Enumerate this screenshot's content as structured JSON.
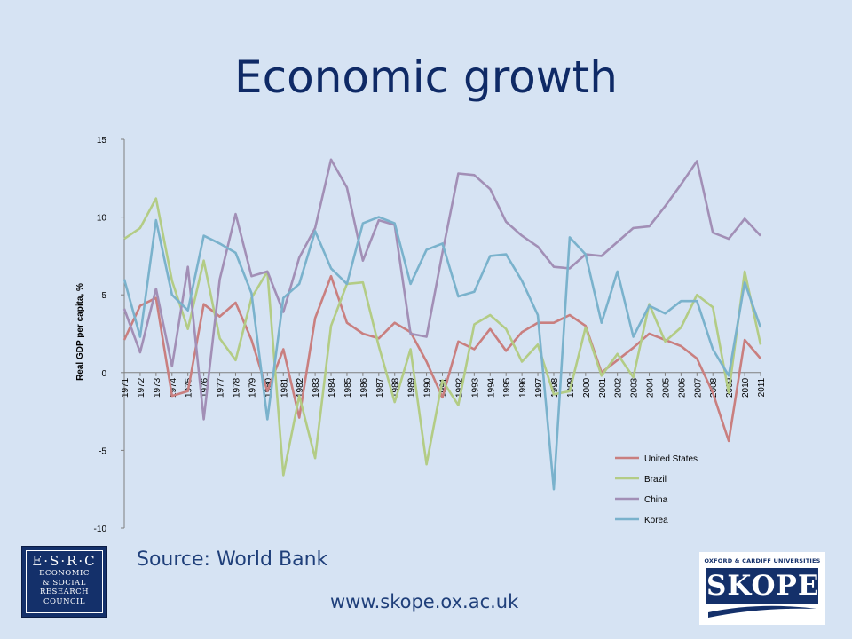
{
  "page": {
    "title": "Economic growth"
  },
  "chart_data": {
    "type": "line",
    "title": "",
    "xlabel": "",
    "ylabel": "Real GDP per capita, %",
    "ylim": [
      -10,
      15
    ],
    "yticks": [
      15,
      10,
      5,
      0,
      -5,
      -10
    ],
    "grid": false,
    "legend_position": "bottom-right",
    "x": [
      "1971",
      "1972",
      "1973",
      "1974",
      "1975",
      "1976",
      "1977",
      "1978",
      "1979",
      "1980",
      "1981",
      "1982",
      "1983",
      "1984",
      "1985",
      "1986",
      "1987",
      "1988",
      "1989",
      "1990",
      "1991",
      "1992",
      "1993",
      "1994",
      "1995",
      "1996",
      "1997",
      "1998",
      "1999",
      "2000",
      "2001",
      "2002",
      "2003",
      "2004",
      "2005",
      "2006",
      "2007",
      "2008",
      "2009",
      "2010",
      "2011"
    ],
    "series": [
      {
        "name": "United States",
        "color": "#c97f7f",
        "values": [
          2.1,
          4.3,
          4.8,
          -1.5,
          -1.2,
          4.4,
          3.6,
          4.5,
          2.1,
          -1.2,
          1.5,
          -2.9,
          3.5,
          6.2,
          3.2,
          2.5,
          2.2,
          3.2,
          2.6,
          0.7,
          -1.6,
          2.0,
          1.5,
          2.8,
          1.4,
          2.6,
          3.2,
          3.2,
          3.7,
          3.0,
          0.0,
          0.8,
          1.6,
          2.5,
          2.1,
          1.7,
          0.9,
          -1.3,
          -4.4,
          2.1,
          0.9
        ]
      },
      {
        "name": "Brazil",
        "color": "#b3cc85",
        "values": [
          8.6,
          9.3,
          11.2,
          5.9,
          2.8,
          7.2,
          2.2,
          0.8,
          4.8,
          6.5,
          -6.6,
          -1.5,
          -5.5,
          3.0,
          5.7,
          5.8,
          1.7,
          -1.9,
          1.5,
          -5.9,
          -0.5,
          -2.1,
          3.1,
          3.7,
          2.8,
          0.7,
          1.8,
          -1.4,
          -1.2,
          2.9,
          -0.2,
          1.2,
          -0.3,
          4.4,
          2.0,
          2.9,
          5.0,
          4.2,
          -1.3,
          6.5,
          1.8
        ]
      },
      {
        "name": "China",
        "color": "#a28fb6",
        "values": [
          4.1,
          1.3,
          5.4,
          0.4,
          6.8,
          -3.0,
          6.0,
          10.2,
          6.2,
          6.5,
          3.9,
          7.4,
          9.3,
          13.7,
          11.9,
          7.2,
          9.8,
          9.5,
          2.5,
          2.3,
          7.7,
          12.8,
          12.7,
          11.8,
          9.7,
          8.8,
          8.1,
          6.8,
          6.7,
          7.6,
          7.5,
          8.4,
          9.3,
          9.4,
          10.7,
          12.1,
          13.6,
          9.0,
          8.6,
          9.9,
          8.8
        ]
      },
      {
        "name": "Korea",
        "color": "#7ab2cc",
        "values": [
          6.0,
          2.3,
          9.8,
          5.0,
          4.0,
          8.8,
          8.3,
          7.7,
          5.1,
          -3.0,
          4.8,
          5.7,
          9.1,
          6.7,
          5.7,
          9.6,
          10.0,
          9.6,
          5.7,
          7.9,
          8.3,
          4.9,
          5.2,
          7.5,
          7.6,
          5.9,
          3.7,
          -7.5,
          8.7,
          7.6,
          3.2,
          6.5,
          2.3,
          4.3,
          3.8,
          4.6,
          4.6,
          1.5,
          -0.2,
          5.8,
          2.9
        ]
      }
    ]
  },
  "footer": {
    "source": "Source: World Bank",
    "url": "www.skope.ox.ac.uk"
  },
  "logos": {
    "esrc": {
      "line1": "E·S·R·C",
      "line2": "ECONOMIC",
      "line3": "& SOCIAL",
      "line4": "RESEARCH",
      "line5": "COUNCIL"
    },
    "skope": {
      "tagline": "OXFORD & CARDIFF UNIVERSITIES",
      "name": "SKOPE"
    }
  },
  "colors": {
    "background": "#d6e3f3",
    "title": "#0f2a66",
    "text": "#1f3f7a"
  }
}
